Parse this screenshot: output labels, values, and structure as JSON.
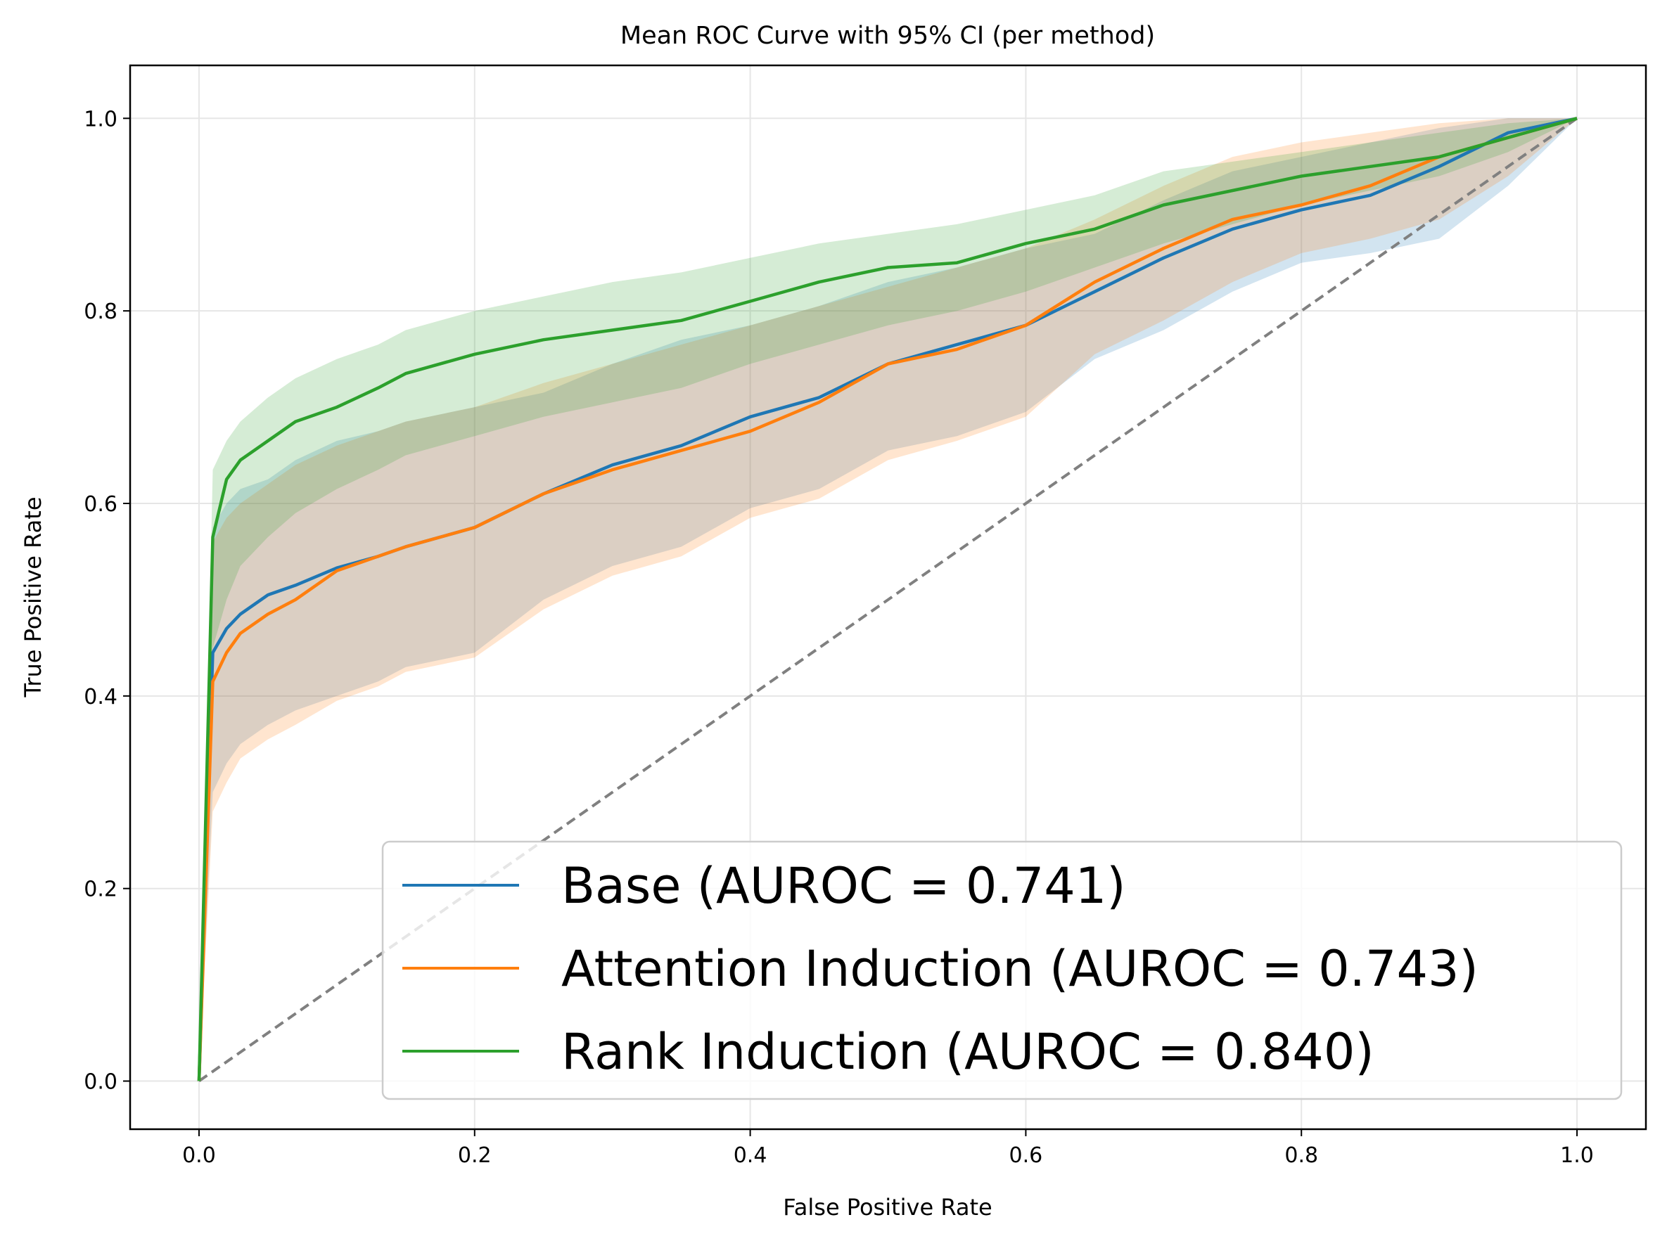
{
  "chart_data": {
    "type": "line",
    "title": "Mean ROC Curve with 95% CI (per method)",
    "xlabel": "False Positive Rate",
    "ylabel": "True Positive Rate",
    "xlim": [
      -0.05,
      1.05
    ],
    "ylim": [
      -0.05,
      1.055
    ],
    "xticks": [
      "0.0",
      "0.2",
      "0.4",
      "0.6",
      "0.8",
      "1.0"
    ],
    "yticks": [
      "0.0",
      "0.2",
      "0.4",
      "0.6",
      "0.8",
      "1.0"
    ],
    "grid": true,
    "legend_position": "lower-right",
    "diagonal_reference": {
      "x": [
        0,
        1
      ],
      "y": [
        0,
        1
      ],
      "color": "#808080",
      "style": "dashed"
    },
    "x": [
      0,
      0.01,
      0.02,
      0.03,
      0.05,
      0.07,
      0.1,
      0.13,
      0.15,
      0.2,
      0.25,
      0.3,
      0.35,
      0.4,
      0.45,
      0.5,
      0.55,
      0.6,
      0.65,
      0.7,
      0.75,
      0.8,
      0.85,
      0.9,
      0.95,
      1.0
    ],
    "series": [
      {
        "name": "Base (AUROC = 0.741)",
        "color": "#1f77b4",
        "y": [
          0,
          0.445,
          0.47,
          0.485,
          0.505,
          0.515,
          0.533,
          0.545,
          0.555,
          0.575,
          0.61,
          0.64,
          0.66,
          0.69,
          0.71,
          0.745,
          0.765,
          0.785,
          0.82,
          0.855,
          0.885,
          0.905,
          0.92,
          0.95,
          0.985,
          1.0
        ],
        "ci_lower": [
          0,
          0.3,
          0.33,
          0.35,
          0.37,
          0.385,
          0.4,
          0.415,
          0.43,
          0.445,
          0.5,
          0.535,
          0.555,
          0.595,
          0.615,
          0.655,
          0.67,
          0.695,
          0.75,
          0.78,
          0.82,
          0.85,
          0.86,
          0.875,
          0.93,
          1.0
        ],
        "ci_upper": [
          0,
          0.575,
          0.6,
          0.615,
          0.625,
          0.645,
          0.665,
          0.675,
          0.685,
          0.7,
          0.715,
          0.745,
          0.77,
          0.785,
          0.805,
          0.83,
          0.845,
          0.865,
          0.88,
          0.915,
          0.945,
          0.96,
          0.975,
          0.99,
          1.0,
          1.0
        ]
      },
      {
        "name": "Attention Induction (AUROC = 0.743)",
        "color": "#ff7f0e",
        "y": [
          0,
          0.415,
          0.445,
          0.465,
          0.485,
          0.5,
          0.53,
          0.545,
          0.555,
          0.575,
          0.61,
          0.635,
          0.655,
          0.675,
          0.705,
          0.745,
          0.76,
          0.785,
          0.83,
          0.865,
          0.895,
          0.91,
          0.93,
          0.96,
          0.98,
          1.0
        ],
        "ci_lower": [
          0,
          0.28,
          0.31,
          0.335,
          0.355,
          0.37,
          0.395,
          0.41,
          0.425,
          0.44,
          0.49,
          0.525,
          0.545,
          0.585,
          0.605,
          0.645,
          0.665,
          0.69,
          0.755,
          0.79,
          0.83,
          0.86,
          0.875,
          0.895,
          0.94,
          1.0
        ],
        "ci_upper": [
          0,
          0.56,
          0.585,
          0.6,
          0.62,
          0.64,
          0.66,
          0.675,
          0.685,
          0.7,
          0.725,
          0.745,
          0.765,
          0.785,
          0.805,
          0.825,
          0.845,
          0.865,
          0.895,
          0.93,
          0.96,
          0.975,
          0.985,
          0.995,
          1.0,
          1.0
        ]
      },
      {
        "name": "Rank Induction (AUROC = 0.840)",
        "color": "#2ca02c",
        "y": [
          0,
          0.565,
          0.625,
          0.645,
          0.665,
          0.685,
          0.7,
          0.72,
          0.735,
          0.755,
          0.77,
          0.78,
          0.79,
          0.81,
          0.83,
          0.845,
          0.85,
          0.87,
          0.885,
          0.91,
          0.925,
          0.94,
          0.95,
          0.96,
          0.98,
          1.0
        ],
        "ci_lower": [
          0,
          0.45,
          0.5,
          0.535,
          0.565,
          0.59,
          0.615,
          0.635,
          0.65,
          0.67,
          0.69,
          0.705,
          0.72,
          0.745,
          0.765,
          0.785,
          0.8,
          0.82,
          0.845,
          0.87,
          0.89,
          0.91,
          0.925,
          0.94,
          0.965,
          1.0
        ],
        "ci_upper": [
          0,
          0.635,
          0.665,
          0.685,
          0.71,
          0.73,
          0.75,
          0.765,
          0.78,
          0.8,
          0.815,
          0.83,
          0.84,
          0.855,
          0.87,
          0.88,
          0.89,
          0.905,
          0.92,
          0.945,
          0.955,
          0.965,
          0.975,
          0.985,
          0.995,
          1.0
        ]
      }
    ]
  }
}
